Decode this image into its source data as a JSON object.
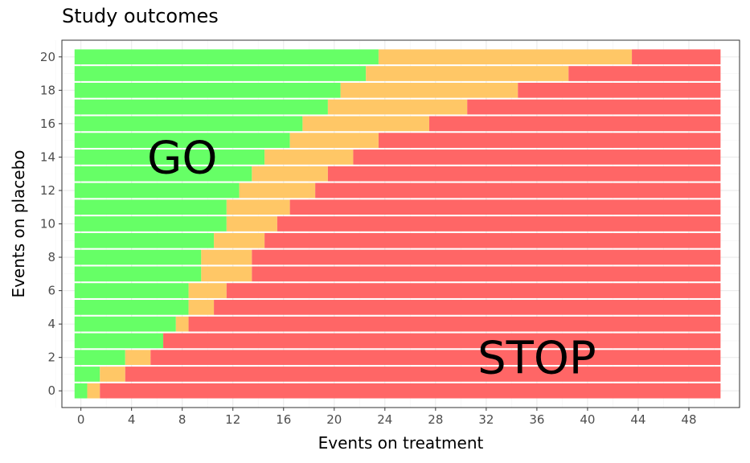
{
  "chart_data": {
    "type": "bar",
    "orientation": "horizontal",
    "stacked": true,
    "title": "Study outcomes",
    "xlabel": "Events on treatment",
    "ylabel": "Events on placebo",
    "xlim": [
      -1.5,
      52
    ],
    "ylim": [
      -1,
      21
    ],
    "xticks": [
      "0",
      "4",
      "8",
      "12",
      "16",
      "20",
      "24",
      "28",
      "32",
      "36",
      "40",
      "44",
      "48"
    ],
    "yticks": [
      "0",
      "2",
      "4",
      "6",
      "8",
      "10",
      "12",
      "14",
      "16",
      "18",
      "20"
    ],
    "grid": true,
    "bar_start": -0.5,
    "bar_end": 50.5,
    "colors": {
      "go": "#66ff66",
      "consider": "#ffc766",
      "stop": "#ff6666"
    },
    "categories": [
      0,
      1,
      2,
      3,
      4,
      5,
      6,
      7,
      8,
      9,
      10,
      11,
      12,
      13,
      14,
      15,
      16,
      17,
      18,
      19,
      20
    ],
    "go_end": [
      0.5,
      1.5,
      3.5,
      6.5,
      7.5,
      8.5,
      8.5,
      9.5,
      9.5,
      10.5,
      11.5,
      11.5,
      12.5,
      13.5,
      14.5,
      16.5,
      17.5,
      19.5,
      20.5,
      22.5,
      23.5
    ],
    "stop_start": [
      1.5,
      3.5,
      5.5,
      6.5,
      8.5,
      10.5,
      11.5,
      13.5,
      13.5,
      14.5,
      15.5,
      16.5,
      18.5,
      19.5,
      21.5,
      23.5,
      27.5,
      30.5,
      34.5,
      38.5,
      43.5
    ],
    "annotations": [
      {
        "text": "GO",
        "x": 8,
        "y": 14
      },
      {
        "text": "STOP",
        "x": 36,
        "y": 2
      }
    ]
  }
}
